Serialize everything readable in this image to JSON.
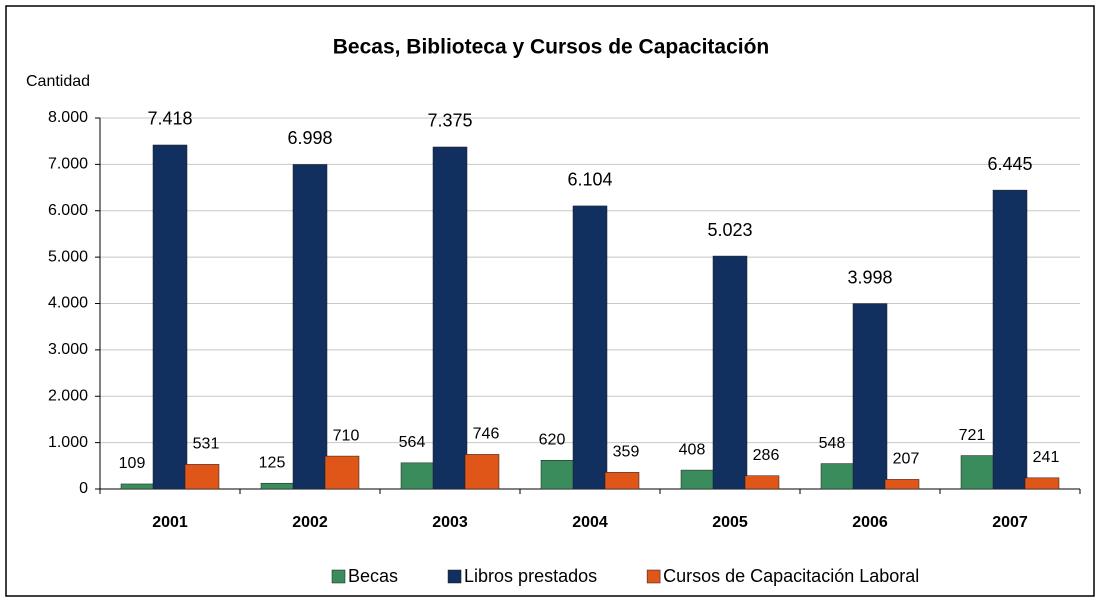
{
  "chart_data": {
    "type": "bar",
    "title": "Becas, Biblioteca y Cursos de Capacitación",
    "y_label": "Cantidad",
    "categories": [
      "2001",
      "2002",
      "2003",
      "2004",
      "2005",
      "2006",
      "2007"
    ],
    "series": [
      {
        "name": "Becas",
        "color": "#3a8c5c",
        "values": [
          109,
          125,
          564,
          620,
          408,
          548,
          721
        ]
      },
      {
        "name": "Libros prestados",
        "color": "#12305f",
        "values": [
          7418,
          6998,
          7375,
          6104,
          5023,
          3998,
          6445
        ],
        "value_labels": [
          "7.418",
          "6.998",
          "7.375",
          "6.104",
          "5.023",
          "3.998",
          "6.445"
        ]
      },
      {
        "name": "Cursos de Capacitación Laboral",
        "color": "#e05518",
        "values": [
          531,
          710,
          746,
          359,
          286,
          207,
          241
        ]
      }
    ],
    "ylim": [
      0,
      8000
    ],
    "yticks": [
      0,
      {
        "value": 1000,
        "label": "1.000"
      },
      {
        "value": 2000,
        "label": "2.000"
      },
      {
        "value": 3000,
        "label": "3.000"
      },
      {
        "value": 4000,
        "label": "4.000"
      },
      {
        "value": 5000,
        "label": "5.000"
      },
      {
        "value": 6000,
        "label": "6.000"
      },
      {
        "value": 7000,
        "label": "7.000"
      },
      {
        "value": 8000,
        "label": "8.000"
      }
    ],
    "grid": true,
    "legend": "bottom"
  }
}
